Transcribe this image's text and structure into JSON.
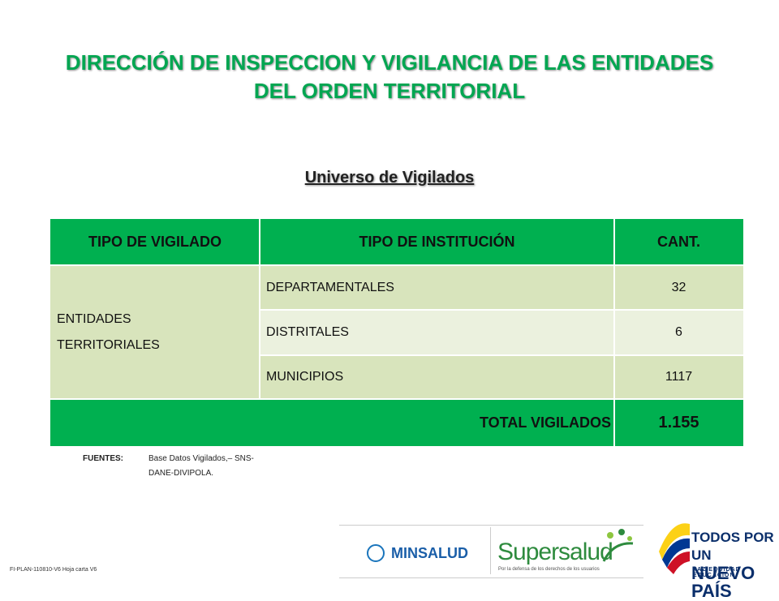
{
  "title_lines": [
    "DIRECCIÓN DE INSPECCION Y VIGILANCIA DE LAS ENTIDADES",
    "DEL ORDEN TERRITORIAL"
  ],
  "subtitle": "Universo de Vigilados",
  "table": {
    "header": [
      "TIPO DE VIGILADO",
      "TIPO DE INSTITUCIÓN",
      "CANT."
    ],
    "group_lines": [
      "ENTIDADES",
      "TERRITORIALES"
    ],
    "rows": [
      [
        "DEPARTAMENTALES",
        "32"
      ],
      [
        "DISTRITALES",
        "6"
      ],
      [
        "MUNICIPIOS",
        "1117"
      ]
    ],
    "total_label": "TOTAL VIGILADOS",
    "total": "1.155"
  },
  "sources": {
    "label": "FUENTES:",
    "lines": [
      "Base Datos Vigilados,– SNS-",
      "DANE-DIVIPOLA."
    ]
  },
  "footer_code": "FI-PLAN-110810-V6 Hoja carta V6",
  "logos": {
    "minsalud": "MINSALUD",
    "supersalud": "Supersalud",
    "supersalud_tagline": "Por la defensa de los derechos de los usuarios",
    "gobierno_lines": [
      "TODOS POR UN",
      "NUEVO PAÍS"
    ],
    "gobierno_tagline": "PAZ EQUIDAD EDUCACIÓN"
  }
}
